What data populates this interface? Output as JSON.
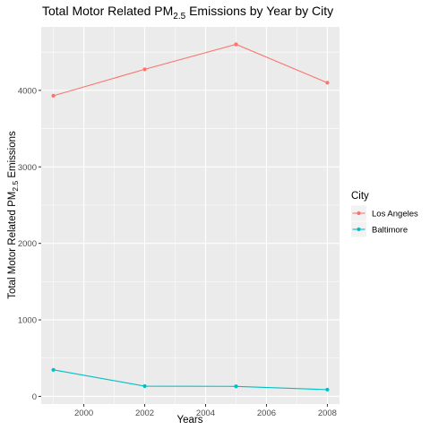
{
  "chart_data": {
    "type": "line",
    "title_main": "Total Motor Related  PM",
    "title_sub": "2.5",
    "title_suffix": " Emissions by Year by City",
    "xlabel": "Years",
    "ylabel_main": "Total Motor Related PM",
    "ylabel_sub": "2.5",
    "ylabel_suffix": " Emissions",
    "x": [
      1999,
      2002,
      2005,
      2008
    ],
    "xlim": [
      1998.6,
      2008.4
    ],
    "ylim": [
      -100,
      4830
    ],
    "xticks": [
      2000,
      2002,
      2004,
      2006,
      2008
    ],
    "xtick_labels": [
      "2000",
      "2002",
      "2004",
      "2006",
      "2008"
    ],
    "yticks": [
      0,
      1000,
      2000,
      3000,
      4000
    ],
    "ytick_labels": [
      "0",
      "1000",
      "2000",
      "3000",
      "4000"
    ],
    "grid": true,
    "legend_title": "City",
    "legend_placement": "right",
    "series": [
      {
        "name": "Los Angeles",
        "color": "#f8766d",
        "values": [
          3930,
          4275,
          4602,
          4100
        ]
      },
      {
        "name": "Baltimore",
        "color": "#00bfc4",
        "values": [
          347,
          134,
          131,
          88
        ]
      }
    ]
  }
}
